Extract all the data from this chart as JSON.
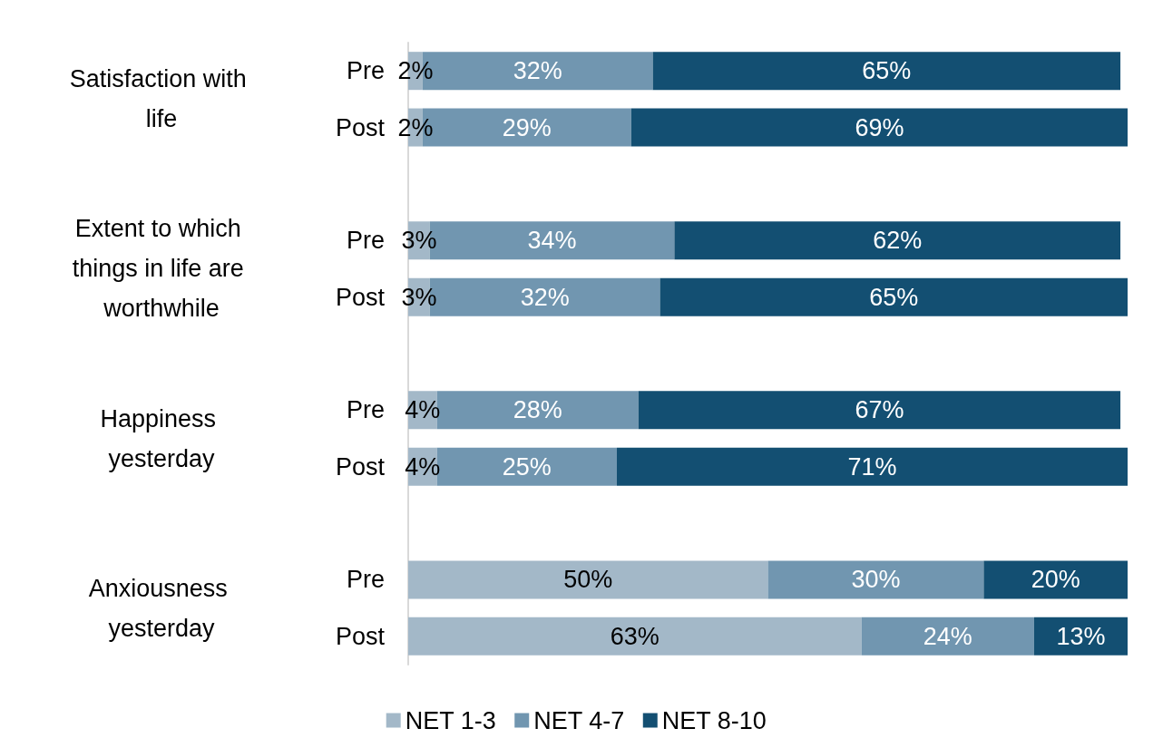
{
  "chart_data": {
    "type": "bar",
    "orientation": "horizontal",
    "stacked": true,
    "categories": [
      "Pre",
      "Post",
      "Pre",
      "Post",
      "Pre",
      "Post",
      "Pre",
      "Post"
    ],
    "annotations": [
      "Satisfaction with life",
      "Extent to which things in life are worthwhile",
      "Happiness yesterday",
      "Anxiousness yesterday"
    ],
    "series": [
      {
        "name": "NET 1-3",
        "color": "#a3b8c8",
        "values": [
          2,
          2,
          3,
          3,
          4,
          4,
          50,
          63
        ],
        "value_labels": [
          "2%",
          "2%",
          "3%",
          "3%",
          "4%",
          "4%",
          "50%",
          "63%"
        ]
      },
      {
        "name": "NET 4-7",
        "color": "#7196b0",
        "values": [
          32,
          29,
          34,
          32,
          28,
          25,
          30,
          24
        ],
        "value_labels": [
          "32%",
          "29%",
          "34%",
          "32%",
          "28%",
          "25%",
          "30%",
          "24%"
        ]
      },
      {
        "name": "NET 8-10",
        "color": "#134f72",
        "values": [
          65,
          69,
          62,
          65,
          67,
          71,
          20,
          13
        ],
        "value_labels": [
          "65%",
          "69%",
          "62%",
          "65%",
          "67%",
          "71%",
          "20%",
          "13%"
        ]
      }
    ],
    "tick_labels": "y",
    "legend": "bottom"
  }
}
